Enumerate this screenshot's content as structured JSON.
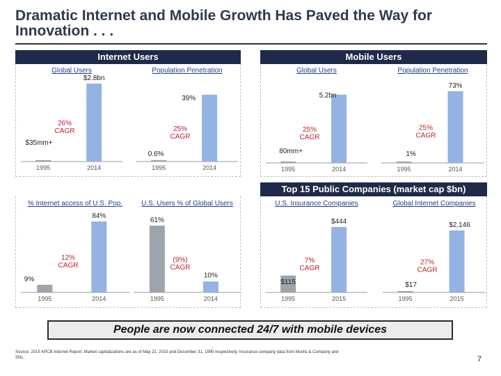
{
  "title": "Dramatic Internet and Mobile Growth Has Paved the Way for Innovation . . .",
  "sections": {
    "internet": "Internet Users",
    "mobile": "Mobile Users",
    "top15": "Top 15 Public Companies (market cap $bn)"
  },
  "banner": "People are now connected 24/7 with mobile devices",
  "footnote": "Source: 2015 KPCB Internet Report. Market capitalizations are as of May 22, 2015 and December 31, 1995 respectively. Insurance company data from Mcelis & Company and SNL.",
  "page_number": "7",
  "colors": {
    "bar_1995": "#9ea4ab",
    "bar_2014": "#94b3e3",
    "header_bg": "#1f2a4a",
    "text": "#2f3a4a"
  },
  "chart_data": [
    {
      "id": "internet-global-users",
      "type": "bar",
      "title": "Global Users",
      "categories": [
        "1995",
        "2014"
      ],
      "values": [
        35,
        2800
      ],
      "value_labels": [
        "$35mm+",
        "$2.8bn"
      ],
      "annotation": "26%\nCAGR"
    },
    {
      "id": "internet-population-penetration",
      "type": "bar",
      "title": "Population Penetration",
      "categories": [
        "1995",
        "2014"
      ],
      "values": [
        0.6,
        39
      ],
      "value_labels": [
        "0.6%",
        "39%"
      ],
      "annotation": "25%\nCAGR"
    },
    {
      "id": "mobile-global-users",
      "type": "bar",
      "title": "Global Users",
      "categories": [
        "1995",
        "2014"
      ],
      "values": [
        80,
        5200
      ],
      "value_labels": [
        "80mm+",
        "5.2bn"
      ],
      "annotation": "25%\nCAGR"
    },
    {
      "id": "mobile-population-penetration",
      "type": "bar",
      "title": "Population Penetration",
      "categories": [
        "1995",
        "2014"
      ],
      "values": [
        1,
        73
      ],
      "value_labels": [
        "1%",
        "73%"
      ],
      "annotation": "25%\nCAGR"
    },
    {
      "id": "internet-access-us-pop",
      "type": "bar",
      "title": "% Internet access of U.S. Pop.",
      "categories": [
        "1995",
        "2014"
      ],
      "values": [
        9,
        84
      ],
      "value_labels": [
        "9%",
        "84%"
      ],
      "annotation": "12%\nCAGR"
    },
    {
      "id": "us-users-pct-global",
      "type": "bar",
      "title": "U.S. Users % of Global Users",
      "categories": [
        "1995",
        "2014"
      ],
      "values": [
        61,
        10
      ],
      "value_labels": [
        "61%",
        "10%"
      ],
      "annotation": "(9%)\nCAGR"
    },
    {
      "id": "us-insurance-companies",
      "type": "bar",
      "title": "U.S. Insurance Companies",
      "categories": [
        "1995",
        "2015"
      ],
      "values": [
        115,
        444
      ],
      "value_labels": [
        "$115",
        "$444"
      ],
      "annotation": "7%\nCAGR"
    },
    {
      "id": "global-internet-companies",
      "type": "bar",
      "title": "Global Internet Companies",
      "categories": [
        "1995",
        "2015"
      ],
      "values": [
        17,
        2146
      ],
      "value_labels": [
        "$17",
        "$2,146"
      ],
      "annotation": "27%\nCAGR"
    }
  ]
}
